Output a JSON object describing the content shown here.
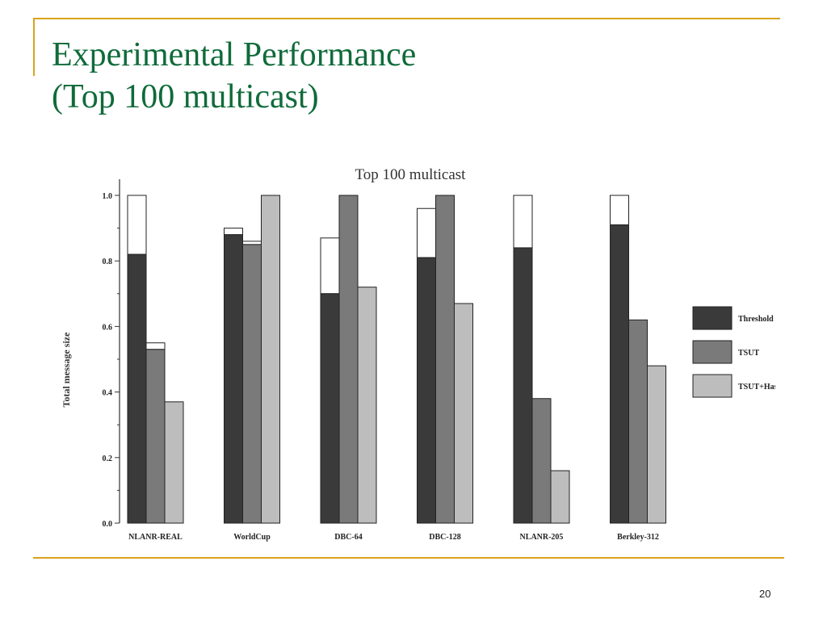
{
  "slide": {
    "title_line1": "Experimental Performance",
    "title_line2": "(Top 100 multicast)",
    "page_number": "20"
  },
  "colors": {
    "accent_line": "#d9a41c",
    "title_text": "#0f6b3a"
  },
  "chart_data": {
    "type": "bar",
    "title": "Top 100 multicast",
    "xlabel": "",
    "ylabel": "Total message size",
    "ylim": [
      0,
      1.0
    ],
    "yticks": [
      "0.0",
      "0.2",
      "0.4",
      "0.6",
      "0.8",
      "1.0"
    ],
    "categories": [
      "NLANR-REAL",
      "WorldCup",
      "DBC-64",
      "DBC-128",
      "NLANR-205",
      "Berkley-312"
    ],
    "series": [
      {
        "name": "Threshold",
        "color": "#3a3a3a",
        "values": [
          0.82,
          0.88,
          0.7,
          0.81,
          0.84,
          0.91
        ]
      },
      {
        "name": "TSUT",
        "color": "#7a7a7a",
        "values": [
          0.53,
          0.85,
          1.0,
          1.0,
          0.38,
          0.62
        ]
      },
      {
        "name": "TSUT+Hash",
        "color": "#bdbdbd",
        "values": [
          0.37,
          1.0,
          0.72,
          0.67,
          0.16,
          0.48
        ]
      }
    ],
    "stacked_white_caps": {
      "Threshold": [
        1.0,
        0.9,
        0.87,
        0.96,
        1.0,
        1.0
      ],
      "TSUT": [
        0.55,
        0.86,
        null,
        null,
        null,
        null
      ]
    },
    "legend_position": "right",
    "grid": false
  }
}
